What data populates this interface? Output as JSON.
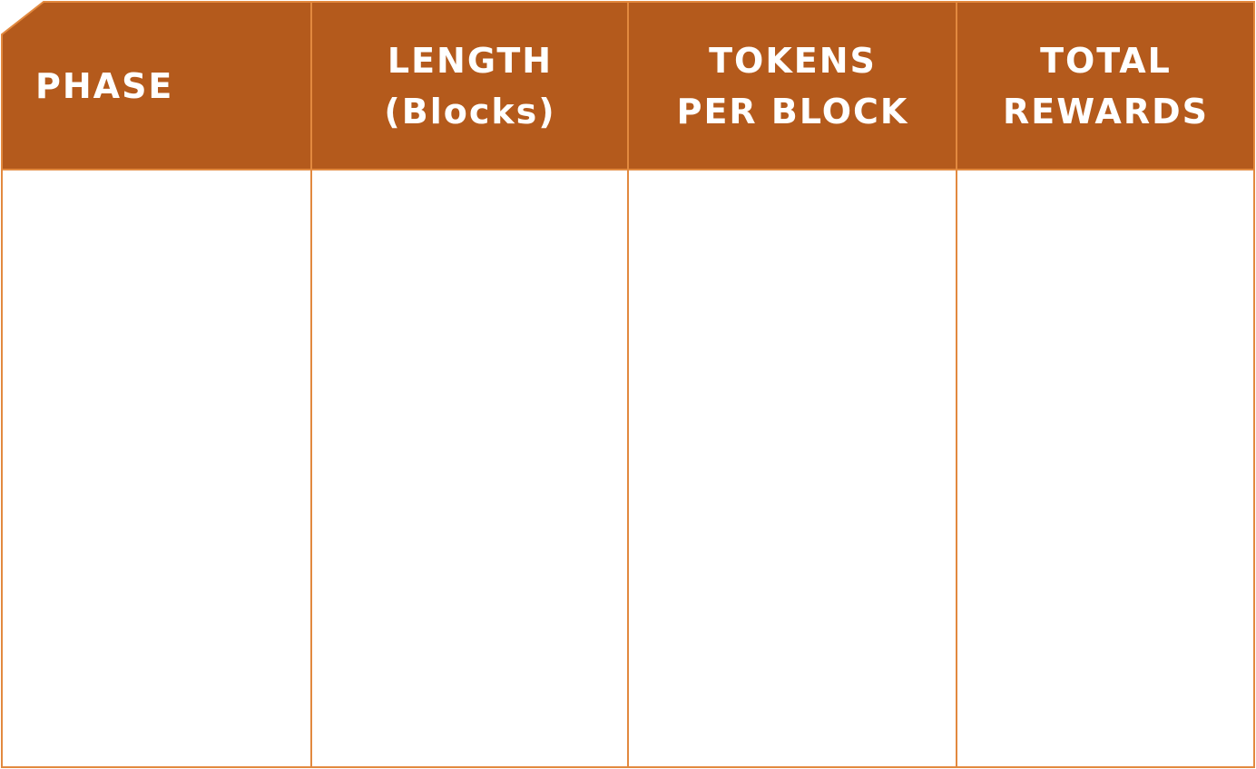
{
  "colors": {
    "header_fill": "#b45a1c",
    "border": "#e2893f",
    "header_text": "#ffffff",
    "body_fill": "#ffffff"
  },
  "table": {
    "columns": [
      {
        "lines": [
          "PHASE"
        ]
      },
      {
        "lines": [
          "LENGTH",
          "(Blocks)"
        ]
      },
      {
        "lines": [
          "TOKENS",
          "PER BLOCK"
        ]
      },
      {
        "lines": [
          "TOTAL",
          "REWARDS"
        ]
      }
    ],
    "rows": []
  }
}
